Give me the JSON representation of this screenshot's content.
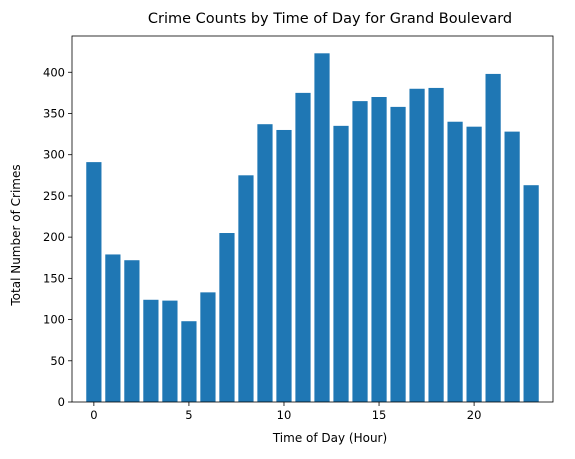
{
  "chart_data": {
    "type": "bar",
    "title": "Crime Counts by Time of Day for Grand Boulevard",
    "xlabel": "Time of Day (Hour)",
    "ylabel": "Total Number of Crimes",
    "x": [
      0,
      1,
      2,
      3,
      4,
      5,
      6,
      7,
      8,
      9,
      10,
      11,
      12,
      13,
      14,
      15,
      16,
      17,
      18,
      19,
      20,
      21,
      22,
      23
    ],
    "values": [
      291,
      179,
      172,
      124,
      123,
      98,
      133,
      205,
      275,
      337,
      330,
      375,
      423,
      335,
      365,
      370,
      358,
      380,
      381,
      340,
      334,
      398,
      328,
      263
    ],
    "bar_color": "#1f77b4",
    "xlim": [
      -1.15,
      24.15
    ],
    "ylim": [
      0,
      444
    ],
    "xticks": [
      0,
      5,
      10,
      15,
      20
    ],
    "yticks": [
      0,
      50,
      100,
      150,
      200,
      250,
      300,
      350,
      400
    ],
    "grid": false,
    "legend": "none"
  }
}
